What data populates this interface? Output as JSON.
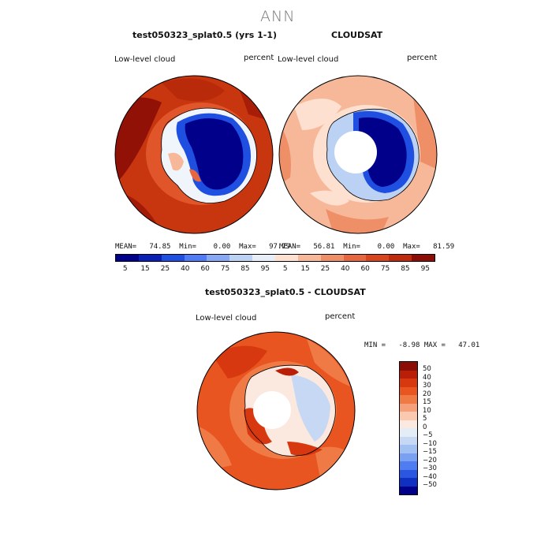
{
  "title": "ANN",
  "panel1": {
    "header": "test050323_splat0.5 (yrs 1-1)",
    "var_label": "Low-level cloud",
    "units": "percent",
    "stats": "MEAN=   74.85  Min=    0.00  Max=   97.79"
  },
  "panel2": {
    "header": "CLOUDSAT",
    "var_label": "Low-level cloud",
    "units": "percent",
    "stats": "MEAN=   56.81  Min=    0.00  Max=   81.59"
  },
  "panel3": {
    "header": "test050323_splat0.5 - CLOUDSAT",
    "var_label": "Low-level cloud",
    "units": "percent",
    "minmax": "MIN =   -8.98 MAX =   47.01"
  },
  "abs_colorbar": {
    "colors": [
      "#00008b",
      "#0a1fb4",
      "#1f4fe0",
      "#4f7cf5",
      "#88a8f5",
      "#bcd2f5",
      "#e8eef7",
      "#fde0cf",
      "#f7b89a",
      "#ef8f68",
      "#e6663f",
      "#d8441c",
      "#c02a0c",
      "#8b0d05"
    ],
    "ticks": [
      "5",
      "15",
      "25",
      "40",
      "60",
      "75",
      "85",
      "95",
      "5",
      "15",
      "25",
      "40",
      "60",
      "75",
      "85",
      "95"
    ]
  },
  "diff_colorbar": {
    "colors": [
      "#8b0d05",
      "#b81e08",
      "#d8380f",
      "#e85520",
      "#f07a45",
      "#f5a07a",
      "#fbc9b0",
      "#fbe8de",
      "#e4ecf6",
      "#c6d8f3",
      "#a3c0f3",
      "#7aa0f2",
      "#4f7cf0",
      "#2a56e0",
      "#0f30c0",
      "#00008b"
    ],
    "ticks": [
      "50",
      "40",
      "30",
      "20",
      "15",
      "10",
      "5",
      "0",
      "−5",
      "−10",
      "−15",
      "−20",
      "−30",
      "−40",
      "−50"
    ]
  }
}
